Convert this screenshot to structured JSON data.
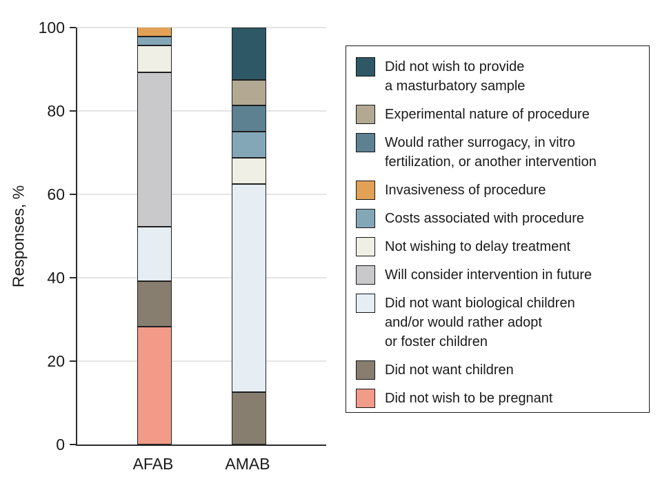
{
  "colors": {
    "axis": "#2b2b2b",
    "grid": "#e4e4e4",
    "text": "#1a1a1a",
    "segment_border": "#1f1f1f",
    "background": "#ffffff"
  },
  "chart_data": {
    "type": "bar",
    "variant": "stacked-percent",
    "title": "",
    "xlabel": "",
    "ylabel": "Responses, %",
    "ylim": [
      0,
      100
    ],
    "yticks": [
      0,
      20,
      40,
      60,
      80,
      100
    ],
    "grid": "horizontal",
    "categories": [
      "AFAB",
      "AMAB"
    ],
    "series": [
      {
        "id": "pregnant",
        "label": "Did not wish to be pregnant",
        "color": "#F29B88",
        "values": [
          28.3,
          0
        ]
      },
      {
        "id": "no_children",
        "label": "Did not want children",
        "color": "#877E70",
        "values": [
          10.9,
          12.5
        ]
      },
      {
        "id": "no_bio_children",
        "label": "Did not want biological children and/or would rather adopt or foster children",
        "color": "#E6EEF3",
        "values": [
          13.0,
          50.0
        ]
      },
      {
        "id": "future",
        "label": "Will consider intervention in future",
        "color": "#C9C9CC",
        "values": [
          37.0,
          0
        ]
      },
      {
        "id": "delay",
        "label": "Not wishing to delay treatment",
        "color": "#EFEFE5",
        "values": [
          6.5,
          6.25
        ]
      },
      {
        "id": "costs",
        "label": "Costs associated with procedure",
        "color": "#84A7B8",
        "values": [
          2.2,
          6.25
        ]
      },
      {
        "id": "surrogacy",
        "label": "Would rather surrogacy, in vitro fertilization, or another intervention",
        "color": "#5D8191",
        "values": [
          0,
          6.25
        ]
      },
      {
        "id": "invasiveness",
        "label": "Invasiveness of procedure",
        "color": "#E2A156",
        "values": [
          2.2,
          0
        ]
      },
      {
        "id": "experimental",
        "label": "Experimental nature of procedure",
        "color": "#B3A892",
        "values": [
          0,
          6.25
        ]
      },
      {
        "id": "masturbatory",
        "label": "Did not wish to provide a masturbatory sample",
        "color": "#2E5866",
        "values": [
          0,
          12.5
        ]
      }
    ],
    "stack_order_bottom_to_top": [
      "pregnant",
      "no_children",
      "no_bio_children",
      "future",
      "delay",
      "costs",
      "surrogacy",
      "invasiveness",
      "experimental",
      "masturbatory"
    ],
    "legend": {
      "position": "right",
      "items": [
        {
          "series": "masturbatory",
          "text": "Did not wish to provide\na masturbatory sample"
        },
        {
          "series": "experimental",
          "text": "Experimental nature of procedure"
        },
        {
          "series": "surrogacy",
          "text": "Would rather surrogacy, in vitro\nfertilization, or another intervention"
        },
        {
          "series": "invasiveness",
          "text": "Invasiveness of procedure"
        },
        {
          "series": "costs",
          "text": "Costs associated with procedure"
        },
        {
          "series": "delay",
          "text": "Not wishing to delay treatment"
        },
        {
          "series": "future",
          "text": "Will consider intervention in future"
        },
        {
          "series": "no_bio_children",
          "text": "Did not want biological children\nand/or would rather adopt\nor foster children"
        },
        {
          "series": "no_children",
          "text": "Did not want children"
        },
        {
          "series": "pregnant",
          "text": "Did not wish to be pregnant"
        }
      ]
    }
  }
}
